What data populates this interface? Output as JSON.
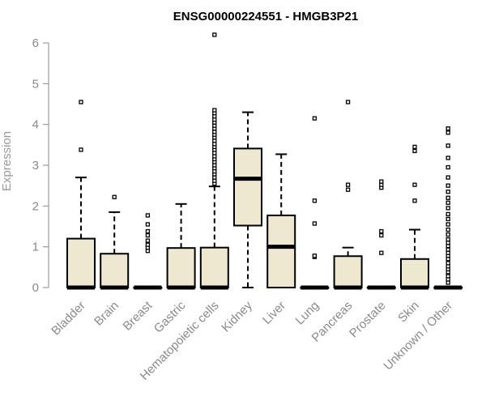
{
  "chart_data": {
    "type": "boxplot",
    "title": "ENSG00000224551 - HMGB3P21",
    "ylabel": "Expression",
    "xlabel": "",
    "ylim": [
      0,
      6
    ],
    "yticks": [
      0,
      1,
      2,
      3,
      4,
      5,
      6
    ],
    "grid": false,
    "legend": "none",
    "colors": {
      "box_fill": "#EEE8D0",
      "stroke": "#000000",
      "axis": "#8a8a8a"
    },
    "categories": [
      "Bladder",
      "Brain",
      "Breast",
      "Gastric",
      "Hematopoietic cells",
      "Kidney",
      "Liver",
      "Lung",
      "Pancreas",
      "Prostate",
      "Skin",
      "Unknown / Other"
    ],
    "boxes": [
      {
        "q1": 0,
        "median": 0,
        "q3": 1.2,
        "whisker_low": 0,
        "whisker_high": 2.7,
        "outliers": [
          3.38,
          4.55
        ]
      },
      {
        "q1": 0,
        "median": 0,
        "q3": 0.83,
        "whisker_low": 0,
        "whisker_high": 1.85,
        "outliers": [
          2.22
        ]
      },
      {
        "q1": 0,
        "median": 0,
        "q3": 0,
        "whisker_low": 0,
        "whisker_high": 0,
        "outliers": [
          0.9,
          0.98,
          1.05,
          1.15,
          1.28,
          1.38,
          1.55,
          1.77
        ]
      },
      {
        "q1": 0,
        "median": 0,
        "q3": 0.97,
        "whisker_low": 0,
        "whisker_high": 2.05,
        "outliers": []
      },
      {
        "q1": 0,
        "median": 0,
        "q3": 0.98,
        "whisker_low": 0,
        "whisker_high": 2.48,
        "outliers": [
          2.55,
          2.62,
          2.7,
          2.78,
          2.85,
          2.93,
          3.0,
          3.08,
          3.15,
          3.22,
          3.3,
          3.38,
          3.45,
          3.52,
          3.6,
          3.68,
          3.75,
          3.82,
          3.9,
          3.97,
          4.05,
          4.12,
          4.2,
          4.28,
          4.35,
          6.2
        ]
      },
      {
        "q1": 1.52,
        "median": 2.67,
        "q3": 3.41,
        "whisker_low": 0,
        "whisker_high": 4.3,
        "outliers": []
      },
      {
        "q1": 0,
        "median": 1.0,
        "q3": 1.77,
        "whisker_low": 0,
        "whisker_high": 3.27,
        "outliers": []
      },
      {
        "q1": 0,
        "median": 0,
        "q3": 0,
        "whisker_low": 0,
        "whisker_high": 0,
        "outliers": [
          0.75,
          0.78,
          1.57,
          2.13,
          4.15
        ]
      },
      {
        "q1": 0,
        "median": 0,
        "q3": 0.77,
        "whisker_low": 0,
        "whisker_high": 0.98,
        "outliers": [
          2.4,
          2.52,
          4.55
        ]
      },
      {
        "q1": 0,
        "median": 0,
        "q3": 0,
        "whisker_low": 0,
        "whisker_high": 0,
        "outliers": [
          0.85,
          1.28,
          1.38,
          2.45,
          2.52,
          2.6
        ]
      },
      {
        "q1": 0,
        "median": 0,
        "q3": 0.7,
        "whisker_low": 0,
        "whisker_high": 1.42,
        "outliers": [
          2.13,
          2.52,
          3.35,
          3.45
        ]
      },
      {
        "q1": 0,
        "median": 0,
        "q3": 0,
        "whisker_low": 0,
        "whisker_high": 0,
        "outliers": [
          0.12,
          0.2,
          0.28,
          0.38,
          0.45,
          0.52,
          0.6,
          0.7,
          0.78,
          0.85,
          0.93,
          1.02,
          1.1,
          1.18,
          1.3,
          1.42,
          1.55,
          1.68,
          1.8,
          1.95,
          2.08,
          2.2,
          2.35,
          2.5,
          2.7,
          2.95,
          3.18,
          3.48,
          3.8,
          3.9
        ]
      }
    ]
  }
}
